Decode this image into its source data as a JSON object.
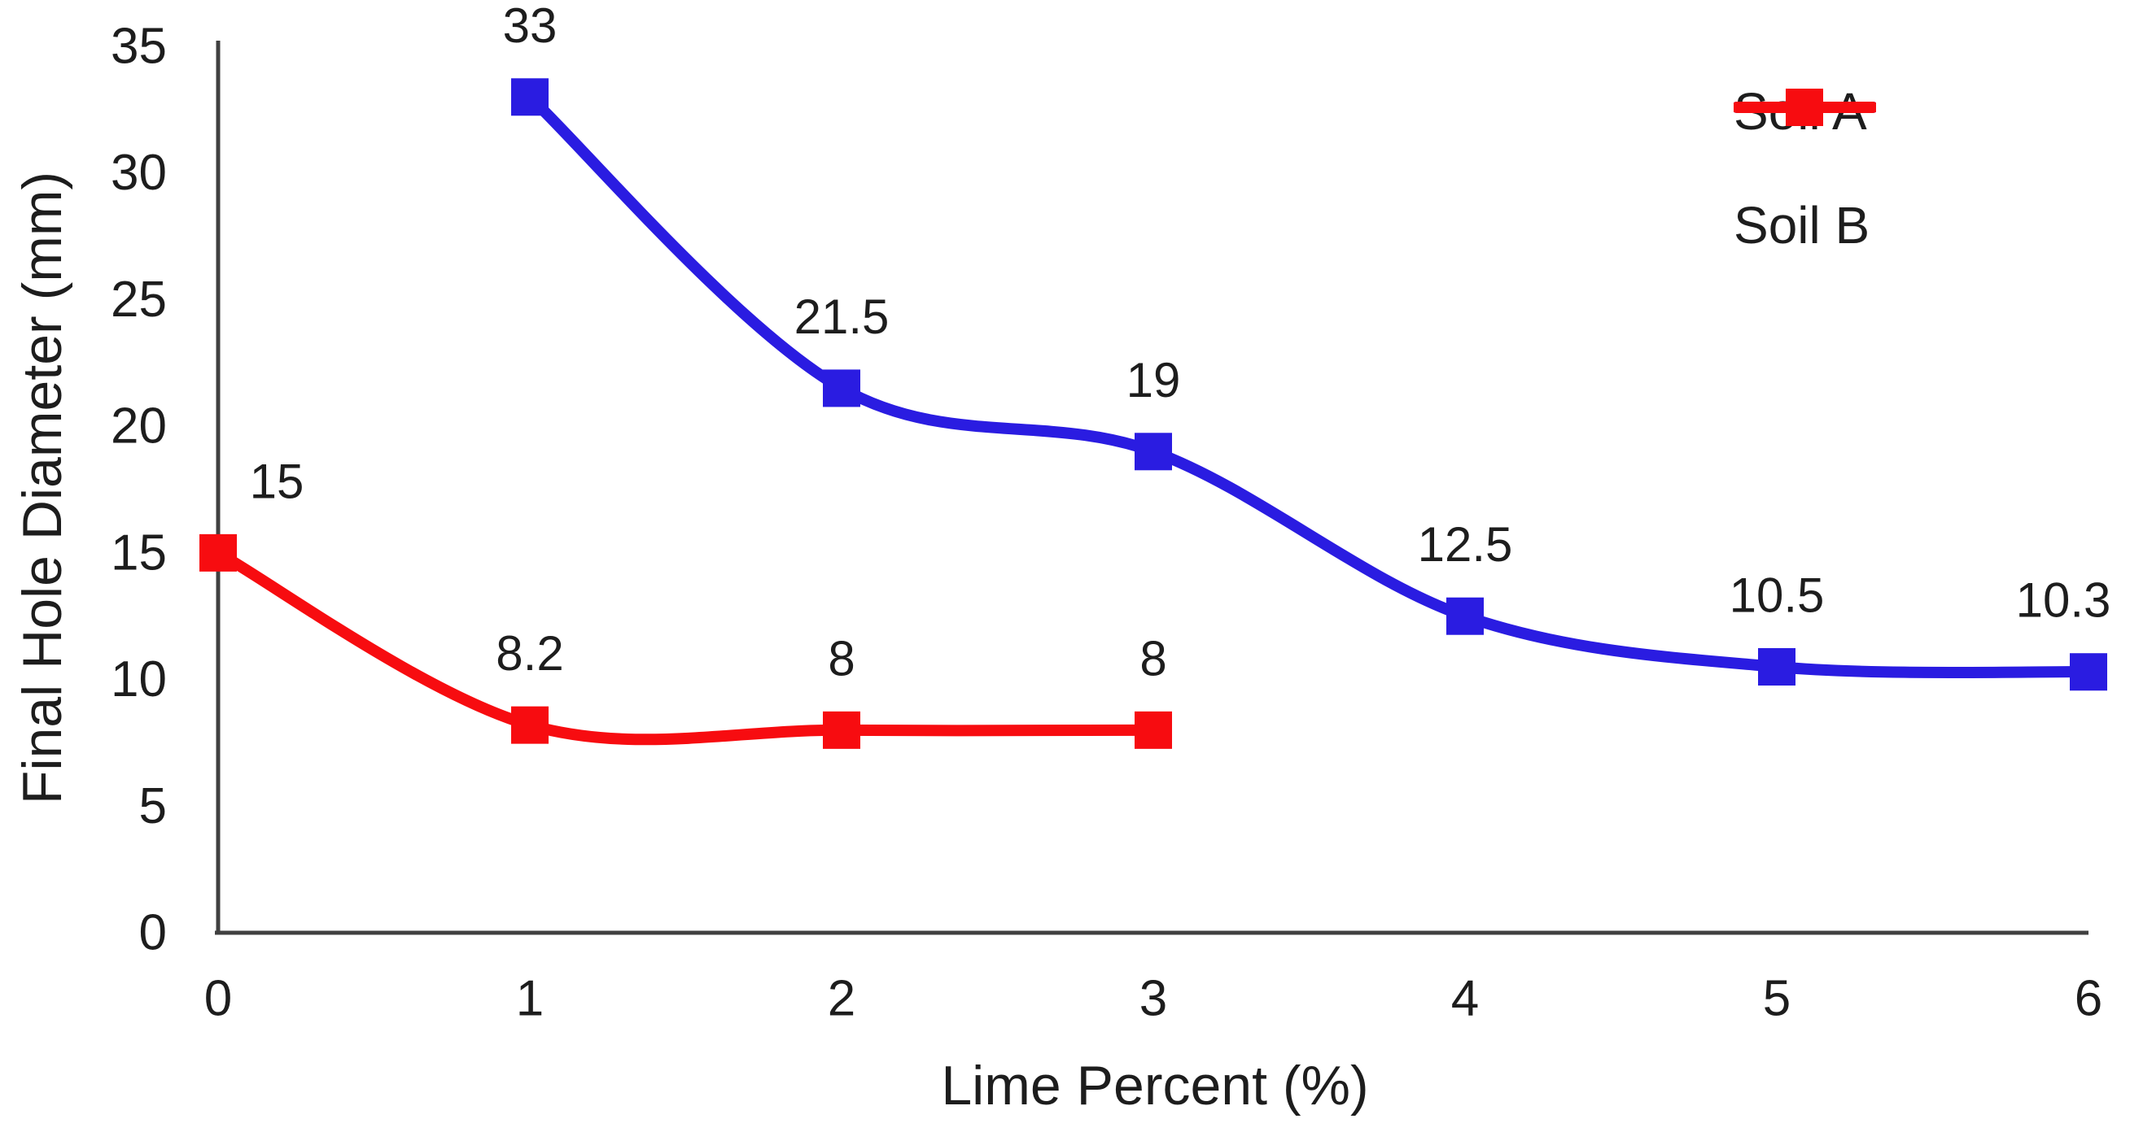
{
  "chart_data": {
    "type": "line",
    "title": "",
    "xlabel": "Lime Percent (%)",
    "ylabel": "Final Hole Diameter (mm)",
    "xlim": [
      0,
      6
    ],
    "ylim": [
      0,
      35
    ],
    "x_ticks": [
      "0",
      "1",
      "2",
      "3",
      "4",
      "5",
      "6"
    ],
    "y_ticks": [
      "0",
      "5",
      "10",
      "15",
      "20",
      "25",
      "30",
      "35"
    ],
    "grid": false,
    "legend_position": "top-right",
    "marker_shape": "square",
    "series": [
      {
        "name": "Soil A",
        "color": "#2a1ce1",
        "x": [
          1,
          2,
          3,
          4,
          5,
          6
        ],
        "y": [
          33,
          21.5,
          19,
          12.5,
          10.5,
          10.3
        ],
        "point_labels": [
          "33",
          "21.5",
          "19",
          "12.5",
          "10.5",
          "10.3"
        ]
      },
      {
        "name": "Soil B",
        "color": "#f70c10",
        "x": [
          0,
          1,
          2,
          3
        ],
        "y": [
          15,
          8.2,
          8,
          8
        ],
        "point_labels": [
          "15",
          "8.2",
          "8",
          "8"
        ]
      }
    ]
  },
  "colors": {
    "axis": "#404040",
    "text": "#1d1d1d",
    "background": "#ffffff"
  }
}
